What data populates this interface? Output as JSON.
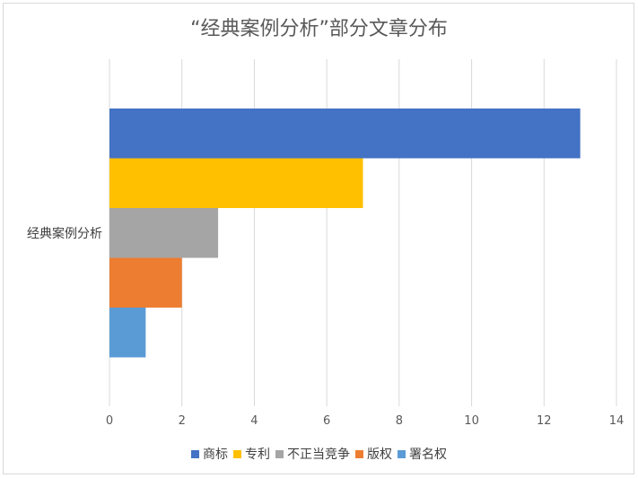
{
  "chart_data": {
    "type": "bar",
    "orientation": "horizontal",
    "title": "“经典案例分析”部分文章分布",
    "categories": [
      "经典案例分析"
    ],
    "series": [
      {
        "name": "商标",
        "values": [
          13
        ],
        "color": "#4472c4"
      },
      {
        "name": "专利",
        "values": [
          7
        ],
        "color": "#ffc000"
      },
      {
        "name": "不正当竞争",
        "values": [
          3
        ],
        "color": "#a5a5a5"
      },
      {
        "name": "版权",
        "values": [
          2
        ],
        "color": "#ed7d31"
      },
      {
        "name": "署名权",
        "values": [
          1
        ],
        "color": "#5b9bd5"
      }
    ],
    "xlim": [
      0,
      14
    ],
    "xticks": [
      0,
      2,
      4,
      6,
      8,
      10,
      12,
      14
    ],
    "grid": true,
    "legend": "bottom"
  }
}
